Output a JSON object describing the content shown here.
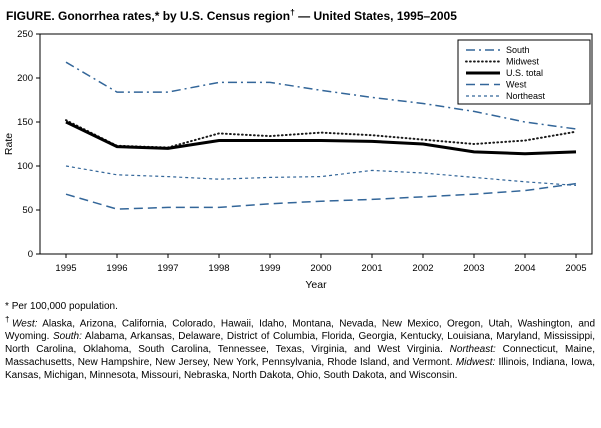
{
  "title": {
    "pre": "FIGURE. Gonorrhea rates,* by U.S. Census region",
    "sup": "†",
    "post": " — United States, 1995–2005"
  },
  "axes": {
    "y_label": "Rate",
    "x_label": "Year"
  },
  "chart_data": {
    "type": "line",
    "title": "Gonorrhea rates, by U.S. Census region — United States, 1995–2005",
    "x": [
      1995,
      1996,
      1997,
      1998,
      1999,
      2000,
      2001,
      2002,
      2003,
      2004,
      2005
    ],
    "xlabel": "Year",
    "ylabel": "Rate",
    "ylim": [
      0,
      250
    ],
    "yticks": [
      0,
      50,
      100,
      150,
      200,
      250
    ],
    "grid": false,
    "legend_position": "top-right-inside",
    "accent_color": "#336699",
    "series": [
      {
        "name": "South",
        "style": "dash-dot",
        "color": "#336699",
        "width": 1.5,
        "dash": "9 4 2 4",
        "values": [
          218,
          184,
          184,
          195,
          195,
          186,
          178,
          171,
          162,
          150,
          142
        ]
      },
      {
        "name": "Midwest",
        "style": "dotted",
        "color": "#1a1a1a",
        "width": 2,
        "dash": "0.8 3.2",
        "linecap": "round",
        "values": [
          152,
          123,
          121,
          137,
          134,
          138,
          135,
          130,
          125,
          129,
          139
        ]
      },
      {
        "name": "U.S. total",
        "style": "solid",
        "color": "#000000",
        "width": 3,
        "dash": "",
        "values": [
          150,
          122,
          120,
          129,
          129,
          129,
          128,
          125,
          116,
          114,
          116
        ]
      },
      {
        "name": "West",
        "style": "dashed",
        "color": "#336699",
        "width": 1.5,
        "dash": "9 5",
        "values": [
          68,
          51,
          53,
          53,
          57,
          60,
          62,
          65,
          68,
          72,
          80
        ]
      },
      {
        "name": "Northeast",
        "style": "fine-dashed",
        "color": "#336699",
        "width": 1.2,
        "dash": "3 3",
        "values": [
          100,
          90,
          88,
          85,
          87,
          88,
          95,
          92,
          87,
          82,
          78
        ]
      }
    ]
  },
  "footnotes": {
    "star": {
      "marker": "*",
      "text": "Per 100,000 population."
    },
    "dagger": {
      "marker": "†",
      "segments": [
        {
          "italic": true,
          "text": "West:"
        },
        {
          "italic": false,
          "text": " Alaska, Arizona, California, Colorado, Hawaii, Idaho, Montana, Nevada, New Mexico, Oregon, Utah, Washington, and Wyoming. "
        },
        {
          "italic": true,
          "text": "South:"
        },
        {
          "italic": false,
          "text": " Alabama, Arkansas, Delaware, District of Columbia, Florida, Georgia, Kentucky, Louisiana, Maryland, Mississippi, North Carolina, Oklahoma, South Carolina, Tennessee, Texas, Virginia, and West Virginia. "
        },
        {
          "italic": true,
          "text": "Northeast:"
        },
        {
          "italic": false,
          "text": " Connecticut, Maine, Massachusetts, New Hampshire, New Jersey, New York, Pennsylvania, Rhode Island, and Vermont. "
        },
        {
          "italic": true,
          "text": "Midwest:"
        },
        {
          "italic": false,
          "text": " Illinois, Indiana, Iowa, Kansas, Michigan, Minnesota, Missouri, Nebraska, North Dakota, Ohio, South Dakota, and Wisconsin."
        }
      ]
    }
  }
}
